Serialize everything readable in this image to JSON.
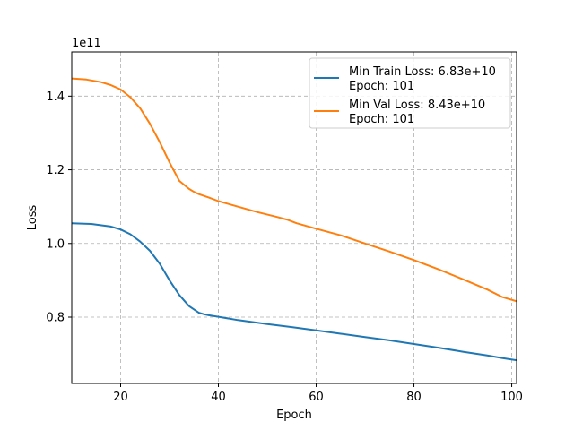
{
  "chart_data": {
    "type": "line",
    "title": "",
    "xlabel": "Epoch",
    "ylabel": "Loss",
    "y_offset_label": "1e11",
    "xlim": [
      10,
      101
    ],
    "ylim": [
      0.62,
      1.52
    ],
    "y_scale_factor": 100000000000.0,
    "xticks": [
      20,
      40,
      60,
      80,
      100
    ],
    "yticks": [
      0.8,
      1.0,
      1.2,
      1.4
    ],
    "xtick_labels": [
      "20",
      "40",
      "60",
      "80",
      "100"
    ],
    "ytick_labels": [
      "0.8",
      "1.0",
      "1.2",
      "1.4"
    ],
    "grid": true,
    "legend_position": "top-right",
    "series": [
      {
        "name": "Min Train Loss: 6.83e+10",
        "name_line2": "Epoch: 101",
        "color": "#1f77b4",
        "x": [
          10,
          14,
          18,
          20,
          22,
          24,
          26,
          28,
          30,
          32,
          34,
          36,
          37,
          38,
          40,
          44,
          50,
          55,
          60,
          65,
          70,
          75,
          80,
          85,
          90,
          95,
          98,
          101
        ],
        "y": [
          1.055,
          1.053,
          1.046,
          1.038,
          1.025,
          1.005,
          0.98,
          0.945,
          0.9,
          0.86,
          0.83,
          0.812,
          0.808,
          0.805,
          0.801,
          0.792,
          0.781,
          0.773,
          0.764,
          0.755,
          0.746,
          0.737,
          0.727,
          0.717,
          0.706,
          0.696,
          0.689,
          0.683
        ]
      },
      {
        "name": "Min Val Loss: 8.43e+10",
        "name_line2": "Epoch: 101",
        "color": "#ff7f0e",
        "x": [
          10,
          13,
          16,
          18,
          20,
          22,
          24,
          26,
          28,
          30,
          32,
          34,
          35,
          36,
          38,
          40,
          44,
          48,
          52,
          54,
          56,
          60,
          65,
          70,
          75,
          80,
          85,
          90,
          95,
          98,
          101
        ],
        "y": [
          1.448,
          1.445,
          1.438,
          1.43,
          1.418,
          1.397,
          1.367,
          1.325,
          1.275,
          1.22,
          1.17,
          1.148,
          1.14,
          1.134,
          1.125,
          1.115,
          1.1,
          1.085,
          1.072,
          1.065,
          1.055,
          1.04,
          1.022,
          1.0,
          0.978,
          0.955,
          0.93,
          0.903,
          0.875,
          0.855,
          0.843
        ]
      }
    ]
  }
}
